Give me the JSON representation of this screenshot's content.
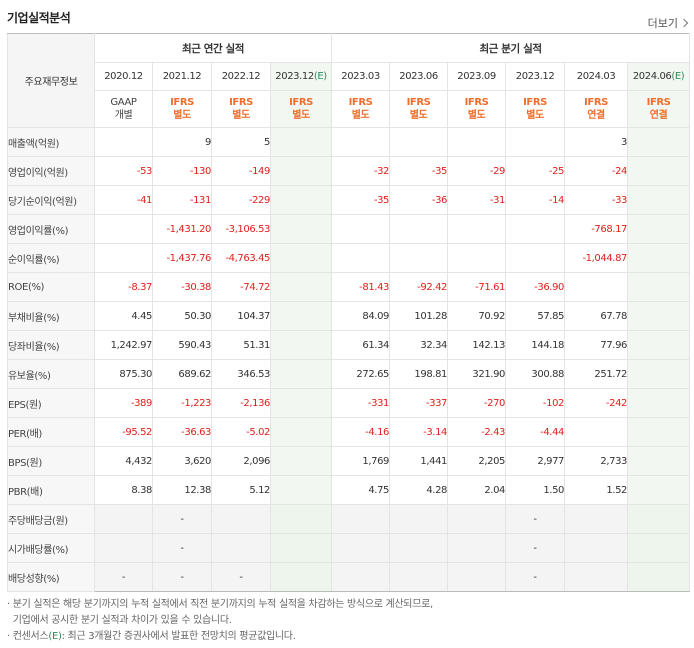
{
  "header": {
    "title": "기업실적분석",
    "more": "더보기"
  },
  "table": {
    "corner": "주요재무정보",
    "group_annual": "최근 연간 실적",
    "group_quarter": "최근 분기 실적",
    "periods": [
      "2020.12",
      "2021.12",
      "2022.12",
      "2023.12",
      "2023.03",
      "2023.06",
      "2023.09",
      "2023.12",
      "2024.03",
      "2024.06"
    ],
    "estimate_suffix": "(E)",
    "standards": [
      {
        "l1": "GAAP",
        "l2": "개별"
      },
      {
        "l1": "IFRS",
        "l2": "별도"
      },
      {
        "l1": "IFRS",
        "l2": "별도"
      },
      {
        "l1": "IFRS",
        "l2": "별도"
      },
      {
        "l1": "IFRS",
        "l2": "별도"
      },
      {
        "l1": "IFRS",
        "l2": "별도"
      },
      {
        "l1": "IFRS",
        "l2": "별도"
      },
      {
        "l1": "IFRS",
        "l2": "별도"
      },
      {
        "l1": "IFRS",
        "l2": "연결"
      },
      {
        "l1": "IFRS",
        "l2": "연결"
      }
    ],
    "rows": [
      {
        "label": "매출액(억원)",
        "values": [
          "",
          "9",
          "5",
          "",
          "",
          "",
          "",
          "",
          "3",
          ""
        ]
      },
      {
        "label": "영업이익(억원)",
        "values": [
          "-53",
          "-130",
          "-149",
          "",
          "-32",
          "-35",
          "-29",
          "-25",
          "-24",
          ""
        ]
      },
      {
        "label": "당기순이익(억원)",
        "values": [
          "-41",
          "-131",
          "-229",
          "",
          "-35",
          "-36",
          "-31",
          "-14",
          "-33",
          ""
        ]
      },
      {
        "label": "영업이익률(%)",
        "values": [
          "",
          "-1,431.20",
          "-3,106.53",
          "",
          "",
          "",
          "",
          "",
          "-768.17",
          ""
        ]
      },
      {
        "label": "순이익률(%)",
        "values": [
          "",
          "-1,437.76",
          "-4,763.45",
          "",
          "",
          "",
          "",
          "",
          "-1,044.87",
          ""
        ]
      },
      {
        "label": "ROE(%)",
        "values": [
          "-8.37",
          "-30.38",
          "-74.72",
          "",
          "-81.43",
          "-92.42",
          "-71.61",
          "-36.90",
          "",
          ""
        ]
      },
      {
        "label": "부채비율(%)",
        "values": [
          "4.45",
          "50.30",
          "104.37",
          "",
          "84.09",
          "101.28",
          "70.92",
          "57.85",
          "67.78",
          ""
        ]
      },
      {
        "label": "당좌비율(%)",
        "values": [
          "1,242.97",
          "590.43",
          "51.31",
          "",
          "61.34",
          "32.34",
          "142.13",
          "144.18",
          "77.96",
          ""
        ]
      },
      {
        "label": "유보율(%)",
        "values": [
          "875.30",
          "689.62",
          "346.53",
          "",
          "272.65",
          "198.81",
          "321.90",
          "300.88",
          "251.72",
          ""
        ]
      },
      {
        "label": "EPS(원)",
        "values": [
          "-389",
          "-1,223",
          "-2,136",
          "",
          "-331",
          "-337",
          "-270",
          "-102",
          "-242",
          ""
        ]
      },
      {
        "label": "PER(배)",
        "values": [
          "-95.52",
          "-36.63",
          "-5.02",
          "",
          "-4.16",
          "-3.14",
          "-2.43",
          "-4.44",
          "",
          ""
        ]
      },
      {
        "label": "BPS(원)",
        "values": [
          "4,432",
          "3,620",
          "2,096",
          "",
          "1,769",
          "1,441",
          "2,205",
          "2,977",
          "2,733",
          ""
        ]
      },
      {
        "label": "PBR(배)",
        "values": [
          "8.38",
          "12.38",
          "5.12",
          "",
          "4.75",
          "4.28",
          "2.04",
          "1.50",
          "1.52",
          ""
        ]
      },
      {
        "label": "주당배당금(원)",
        "values": [
          "",
          "-",
          "",
          "",
          "",
          "",
          "",
          "-",
          "",
          ""
        ]
      },
      {
        "label": "시가배당률(%)",
        "values": [
          "",
          "-",
          "",
          "",
          "",
          "",
          "",
          "-",
          "",
          ""
        ]
      },
      {
        "label": "배당성향(%)",
        "values": [
          "-",
          "-",
          "-",
          "",
          "",
          "",
          "",
          "-",
          "",
          ""
        ]
      }
    ]
  },
  "notes": {
    "note1_line1": "· 분기 실적은 해당 분기까지의 누적 실적에서 직전 분기까지의 누적 실적을 차감하는 방식으로 계산되므로,",
    "note1_line2": "기업에서 공시한 분기 실적과 차이가 있을 수 있습니다.",
    "note2_prefix": "· 컨센서스",
    "note2_e": "(E)",
    "note2_rest": ": 최근 3개월간 증권사에서 발표한 전망치의 평균값입니다."
  },
  "colors": {
    "negative": "#e0201b",
    "ifrs": "#ee6f2d",
    "estimate_bg": "#f2f8f1",
    "estimate_mark": "#2e8b57"
  }
}
